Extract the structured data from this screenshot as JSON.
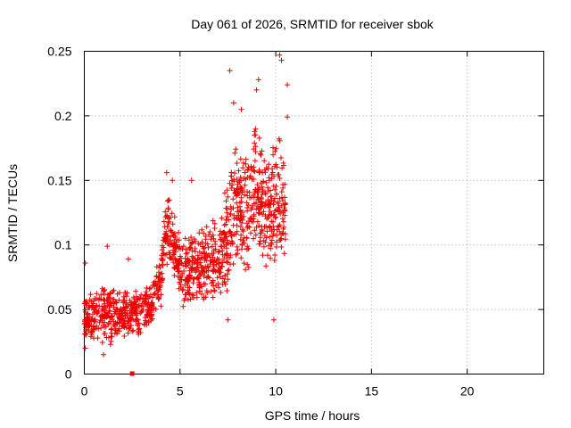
{
  "chart_data": {
    "type": "scatter",
    "title": "Day 061 of 2026, SRMTID for receiver sbok",
    "xlabel": "GPS time / hours",
    "ylabel": "SRMTID / TECUs",
    "xlim": [
      0,
      24
    ],
    "ylim": [
      0,
      0.25
    ],
    "grid": true,
    "marker": "plus",
    "series_color": "#ee0000",
    "x_ticks": [
      0,
      5,
      10,
      15,
      20
    ],
    "x_tick_labels": [
      "0",
      "5",
      "10",
      "15",
      "20"
    ],
    "y_ticks": [
      0,
      0.05,
      0.1,
      0.15,
      0.2,
      0.25
    ],
    "y_tick_labels": [
      "0",
      "0.05",
      "0.1",
      "0.15",
      "0.2",
      "0.25"
    ],
    "gap_marker": {
      "x": 2.5,
      "y": 0.0
    },
    "envelope": [
      {
        "x": 0.0,
        "low": 0.03,
        "high": 0.06
      },
      {
        "x": 0.5,
        "low": 0.025,
        "high": 0.065
      },
      {
        "x": 1.0,
        "low": 0.022,
        "high": 0.07
      },
      {
        "x": 1.5,
        "low": 0.022,
        "high": 0.07
      },
      {
        "x": 2.0,
        "low": 0.024,
        "high": 0.066
      },
      {
        "x": 2.5,
        "low": 0.026,
        "high": 0.064
      },
      {
        "x": 3.0,
        "low": 0.03,
        "high": 0.066
      },
      {
        "x": 3.5,
        "low": 0.036,
        "high": 0.072
      },
      {
        "x": 4.0,
        "low": 0.05,
        "high": 0.1
      },
      {
        "x": 4.3,
        "low": 0.08,
        "high": 0.14
      },
      {
        "x": 4.6,
        "low": 0.08,
        "high": 0.13
      },
      {
        "x": 5.0,
        "low": 0.05,
        "high": 0.11
      },
      {
        "x": 5.5,
        "low": 0.05,
        "high": 0.115
      },
      {
        "x": 6.0,
        "low": 0.048,
        "high": 0.115
      },
      {
        "x": 6.5,
        "low": 0.05,
        "high": 0.12
      },
      {
        "x": 7.0,
        "low": 0.052,
        "high": 0.125
      },
      {
        "x": 7.5,
        "low": 0.06,
        "high": 0.16
      },
      {
        "x": 8.0,
        "low": 0.07,
        "high": 0.19
      },
      {
        "x": 8.5,
        "low": 0.075,
        "high": 0.175
      },
      {
        "x": 9.0,
        "low": 0.085,
        "high": 0.2
      },
      {
        "x": 9.5,
        "low": 0.08,
        "high": 0.17
      },
      {
        "x": 10.0,
        "low": 0.07,
        "high": 0.19
      },
      {
        "x": 10.5,
        "low": 0.08,
        "high": 0.18
      }
    ],
    "notable_points": [
      {
        "x": 0.05,
        "y": 0.086
      },
      {
        "x": 0.05,
        "y": 0.02
      },
      {
        "x": 1.2,
        "y": 0.099
      },
      {
        "x": 2.3,
        "y": 0.089
      },
      {
        "x": 1.0,
        "y": 0.015
      },
      {
        "x": 4.3,
        "y": 0.156
      },
      {
        "x": 4.6,
        "y": 0.15
      },
      {
        "x": 5.6,
        "y": 0.15
      },
      {
        "x": 7.6,
        "y": 0.235
      },
      {
        "x": 7.8,
        "y": 0.21
      },
      {
        "x": 9.1,
        "y": 0.228
      },
      {
        "x": 9.0,
        "y": 0.22
      },
      {
        "x": 10.2,
        "y": 0.247
      },
      {
        "x": 10.3,
        "y": 0.243
      },
      {
        "x": 10.6,
        "y": 0.224
      },
      {
        "x": 10.6,
        "y": 0.199
      },
      {
        "x": 9.9,
        "y": 0.042
      },
      {
        "x": 7.5,
        "y": 0.042
      },
      {
        "x": 8.2,
        "y": 0.205
      }
    ],
    "point_count": 1300,
    "random_seed": 61
  }
}
